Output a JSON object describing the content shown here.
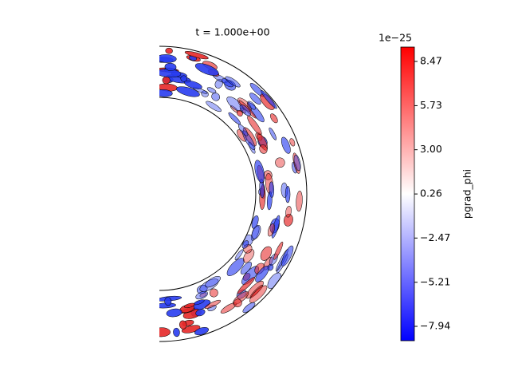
{
  "chart_data": {
    "type": "contour",
    "title": "t = 1.000e+00",
    "colorbar": {
      "label": "pgrad_phi",
      "offset_label": "1e−25",
      "clim": [
        -8.83,
        9.36
      ],
      "ticks": [
        {
          "value": -7.94,
          "label": "−7.94"
        },
        {
          "value": -5.21,
          "label": "−5.21"
        },
        {
          "value": -2.47,
          "label": "−2.47"
        },
        0.26,
        3.0,
        5.73,
        8.47
      ],
      "cmap": "bwr"
    }
  }
}
